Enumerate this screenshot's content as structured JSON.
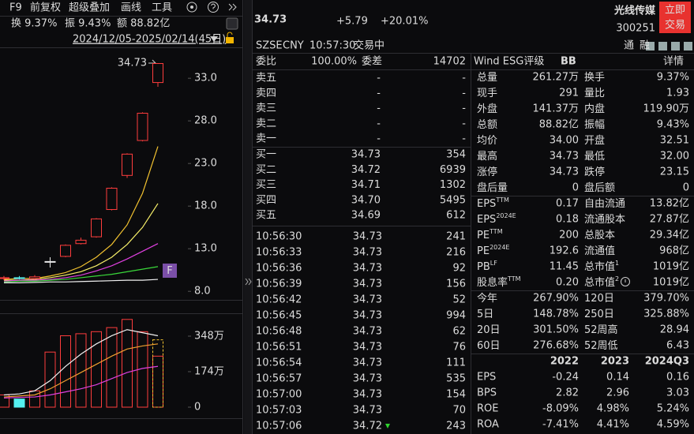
{
  "toolbar": {
    "items": [
      "F9",
      "前复权",
      "超级叠加",
      "画线",
      "工具"
    ]
  },
  "summary": [
    "换 9.37%",
    "振 9.43%",
    "额 88.82亿"
  ],
  "date_range": "2024/12/05-2025/02/14(45日)",
  "kline": {
    "ylim": [
      7,
      36.6
    ],
    "yticks": [
      {
        "value": 33,
        "label": "33.0"
      },
      {
        "value": 28,
        "label": "28.0"
      },
      {
        "value": 23,
        "label": "23.0"
      },
      {
        "value": 18,
        "label": "18.0"
      },
      {
        "value": 13,
        "label": "13.0"
      },
      {
        "value": 8,
        "label": "8.0"
      }
    ],
    "up_color": "#ff3d3d",
    "down_color": "#54f0f0",
    "flat_color": "#e8e8e8",
    "open": [
      9.5,
      9.6,
      9.5,
      11.5,
      12.1,
      13.6,
      14.4,
      17.6,
      21.6,
      25.7,
      32.5
    ],
    "high": [
      9.8,
      9.8,
      9.9,
      12.0,
      13.5,
      14.3,
      16.6,
      20.2,
      24.2,
      29.0,
      34.73
    ],
    "low": [
      9.3,
      9.4,
      9.4,
      10.8,
      12.0,
      13.5,
      14.3,
      17.5,
      21.3,
      25.6,
      32.0
    ],
    "close": [
      9.6,
      9.5,
      9.7,
      11.5,
      13.4,
      14.0,
      16.5,
      20.1,
      24.1,
      28.9,
      34.73
    ],
    "last_label": "34.73",
    "marker": "F",
    "ma": [
      {
        "color": "#f2c230",
        "values": [
          9.4,
          9.5,
          9.5,
          9.8,
          10.2,
          10.9,
          12.0,
          13.5,
          15.8,
          19.5,
          25.0
        ]
      },
      {
        "color": "#f7f06a",
        "values": [
          9.3,
          9.3,
          9.4,
          9.6,
          9.9,
          10.3,
          11.0,
          12.0,
          13.5,
          15.5,
          18.3
        ]
      },
      {
        "color": "#e040e0",
        "values": [
          9.2,
          9.3,
          9.3,
          9.4,
          9.6,
          9.9,
          10.4,
          11.0,
          11.8,
          12.7,
          13.6
        ]
      },
      {
        "color": "#3ad83a",
        "values": [
          9.1,
          9.2,
          9.2,
          9.3,
          9.4,
          9.6,
          9.8,
          10.0,
          10.3,
          10.6,
          10.9
        ]
      },
      {
        "color": "#f0f0f0",
        "values": [
          9.0,
          9.0,
          9.05,
          9.1,
          9.1,
          9.15,
          9.2,
          9.25,
          9.3,
          9.3,
          9.4
        ]
      }
    ],
    "volume": {
      "ylim": [
        0,
        440
      ],
      "yticks": [
        {
          "value": 348,
          "label": "348万"
        },
        {
          "value": 174,
          "label": "174万"
        },
        0
      ],
      "values": [
        60,
        40,
        80,
        270,
        350,
        360,
        370,
        390,
        430,
        370,
        250
      ],
      "projected": 330,
      "ma": [
        {
          "color": "#f0f0f0",
          "values": [
            60,
            65,
            80,
            130,
            200,
            260,
            310,
            350,
            380,
            365,
            350
          ]
        },
        {
          "color": "#f2a030",
          "values": [
            50,
            55,
            60,
            90,
            130,
            170,
            210,
            250,
            285,
            300,
            310
          ]
        },
        {
          "color": "#e040e0",
          "values": [
            45,
            48,
            50,
            60,
            75,
            90,
            110,
            140,
            170,
            190,
            200
          ]
        }
      ]
    }
  },
  "quote": {
    "price": "34.73",
    "change": "+5.79",
    "change_pct": "+20.01%",
    "name": "光线传媒",
    "code": "300251",
    "trade_button": [
      "立即",
      "交易"
    ],
    "exchange": "SZSE",
    "currency": "CNY",
    "time": "10:57:30",
    "status": "交易中",
    "badges": [
      "通",
      "融"
    ]
  },
  "order_book": {
    "ratio_label": "委比",
    "ratio": "100.00%",
    "diff_label": "委差",
    "diff": "14702",
    "asks": [
      {
        "label": "卖五",
        "price": "-",
        "volume": "-"
      },
      {
        "label": "卖四",
        "price": "-",
        "volume": "-"
      },
      {
        "label": "卖三",
        "price": "-",
        "volume": "-"
      },
      {
        "label": "卖二",
        "price": "-",
        "volume": "-"
      },
      {
        "label": "卖一",
        "price": "-",
        "volume": "-"
      }
    ],
    "bids": [
      {
        "label": "买一",
        "price": "34.73",
        "volume": "354"
      },
      {
        "label": "买二",
        "price": "34.72",
        "volume": "6939"
      },
      {
        "label": "买三",
        "price": "34.71",
        "volume": "1302"
      },
      {
        "label": "买四",
        "price": "34.70",
        "volume": "5495"
      },
      {
        "label": "买五",
        "price": "34.69",
        "volume": "612"
      }
    ]
  },
  "trades": [
    {
      "time": "10:56:30",
      "price": "34.73",
      "volume": "241",
      "color": "#ff3d3d"
    },
    {
      "time": "10:56:33",
      "price": "34.73",
      "volume": "216",
      "color": "#2fd42f"
    },
    {
      "time": "10:56:36",
      "price": "34.73",
      "volume": "92",
      "color": "#2fd42f"
    },
    {
      "time": "10:56:39",
      "price": "34.73",
      "volume": "156",
      "color": "#2fd42f"
    },
    {
      "time": "10:56:42",
      "price": "34.73",
      "volume": "52",
      "color": "#2fd42f"
    },
    {
      "time": "10:56:45",
      "price": "34.73",
      "volume": "994",
      "color": "#2fd42f"
    },
    {
      "time": "10:56:48",
      "price": "34.73",
      "volume": "62",
      "color": "#2fd42f"
    },
    {
      "time": "10:56:51",
      "price": "34.73",
      "volume": "76",
      "color": "#2fd42f"
    },
    {
      "time": "10:56:54",
      "price": "34.73",
      "volume": "111",
      "color": "#2fd42f"
    },
    {
      "time": "10:56:57",
      "price": "34.73",
      "volume": "535",
      "color": "#2fd42f"
    },
    {
      "time": "10:57:00",
      "price": "34.73",
      "volume": "154",
      "color": "#2fd42f"
    },
    {
      "time": "10:57:03",
      "price": "34.73",
      "volume": "70",
      "color": "#ff3d3d"
    },
    {
      "time": "10:57:06",
      "price": "34.72",
      "volume": "243",
      "color": "#2fd42f"
    }
  ],
  "esg": {
    "label": "Wind ESG评级",
    "rating": "BB",
    "link": "详情"
  },
  "stats": [
    [
      {
        "label": "总量",
        "value": "261.27万",
        "color": "#e6e6e6"
      },
      {
        "label": "换手",
        "value": "9.37%",
        "color": "#e6e6e6"
      }
    ],
    [
      {
        "label": "现手",
        "value": "291",
        "color": "#e6e6e6"
      },
      {
        "label": "量比",
        "value": "1.93",
        "color": "#e6e6e6"
      }
    ],
    [
      {
        "label": "外盘",
        "value": "141.37万",
        "color": "#ff3d3d"
      },
      {
        "label": "内盘",
        "value": "119.90万",
        "color": "#2fd42f"
      }
    ],
    [
      {
        "label": "总额",
        "value": "88.82亿",
        "color": "#e6e6e6"
      },
      {
        "label": "振幅",
        "value": "9.43%",
        "color": "#e6e6e6"
      }
    ],
    [
      {
        "label": "均价",
        "value": "34.00",
        "color": "#ff3d3d"
      },
      {
        "label": "开盘",
        "value": "32.51",
        "color": "#ff3d3d"
      }
    ],
    [
      {
        "label": "最高",
        "value": "34.73",
        "color": "#ff3d3d"
      },
      {
        "label": "最低",
        "value": "32.00",
        "color": "#ff3d3d"
      }
    ],
    [
      {
        "label": "涨停",
        "value": "34.73",
        "color": "#ff3d3d"
      },
      {
        "label": "跌停",
        "value": "23.15",
        "color": "#2fd42f"
      }
    ],
    [
      {
        "label": "盘后量",
        "value": "0",
        "color": "#e6e6e6"
      },
      {
        "label": "盘后额",
        "value": "0",
        "color": "#e6e6e6"
      }
    ],
    [
      {
        "label": "EPS",
        "sup": "TTM",
        "value": "0.17",
        "color": "#e6e6e6"
      },
      {
        "label": "自由流通",
        "value": "13.82亿",
        "color": "#e6e6e6"
      }
    ],
    [
      {
        "label": "EPS",
        "sup": "2024E",
        "value": "0.18",
        "color": "#e6e6e6"
      },
      {
        "label": "流通股本",
        "value": "27.87亿",
        "color": "#e6e6e6"
      }
    ],
    [
      {
        "label": "PE",
        "sup": "TTM",
        "value": "200",
        "color": "#e6e6e6"
      },
      {
        "label": "总股本",
        "value": "29.34亿",
        "color": "#e6e6e6"
      }
    ],
    [
      {
        "label": "PE",
        "sup": "2024E",
        "value": "192.6",
        "color": "#e6e6e6"
      },
      {
        "label": "流通值",
        "value": "968亿",
        "color": "#e6e6e6"
      }
    ],
    [
      {
        "label": "PB",
        "sup": "LF",
        "value": "11.45",
        "color": "#e6e6e6"
      },
      {
        "label": "总市值",
        "sup": "1",
        "value": "1019亿",
        "color": "#e6e6e6"
      }
    ],
    [
      {
        "label": "股息率",
        "sup": "TTM",
        "value": "0.20",
        "color": "#e6e6e6"
      },
      {
        "label": "总市值",
        "sup": "2",
        "value": "1019亿",
        "color": "#e6e6e6"
      }
    ],
    [
      {
        "label": "今年",
        "value": "267.90%",
        "color": "#ff3d3d"
      },
      {
        "label": "120日",
        "value": "379.70%",
        "color": "#ff3d3d"
      }
    ],
    [
      {
        "label": "5日",
        "value": "148.78%",
        "color": "#ff3d3d"
      },
      {
        "label": "250日",
        "value": "325.88%",
        "color": "#ff3d3d"
      }
    ],
    [
      {
        "label": "20日",
        "value": "301.50%",
        "color": "#ff3d3d"
      },
      {
        "label": "52周高",
        "value": "28.94",
        "color": "#e6e6e6"
      }
    ],
    [
      {
        "label": "60日",
        "value": "276.68%",
        "color": "#ff3d3d"
      },
      {
        "label": "52周低",
        "value": "6.43",
        "color": "#e6e6e6"
      }
    ]
  ],
  "financials": {
    "columns": [
      "2022",
      "2023",
      "2024Q3"
    ],
    "rows": [
      {
        "label": "EPS",
        "values": [
          "-0.24",
          "0.14",
          "0.16"
        ]
      },
      {
        "label": "BPS",
        "values": [
          "2.82",
          "2.96",
          "3.03"
        ]
      },
      {
        "label": "ROE",
        "values": [
          "-8.09%",
          "4.98%",
          "5.24%"
        ]
      },
      {
        "label": "ROA",
        "values": [
          "-7.41%",
          "4.41%",
          "4.59%"
        ]
      }
    ]
  }
}
